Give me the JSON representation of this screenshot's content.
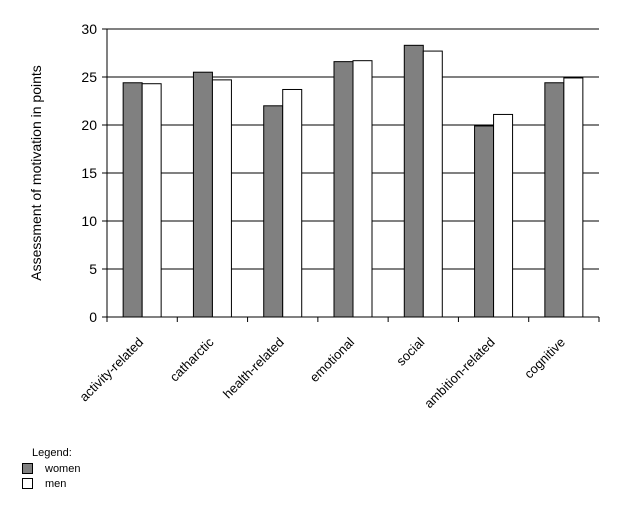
{
  "chart_data": {
    "type": "bar",
    "title": "",
    "xlabel": "",
    "ylabel": "Assessment of motivation in points",
    "ylim": [
      0,
      30
    ],
    "yticks": [
      0,
      5,
      10,
      15,
      20,
      25,
      30
    ],
    "grid": true,
    "legend_position": "bottom-left",
    "categories": [
      "activity-related",
      "catharctic",
      "health-related",
      "emotional",
      "social",
      "ambition-related",
      "cognitive"
    ],
    "series": [
      {
        "name": "women",
        "color": "#808080",
        "values": [
          24.4,
          25.5,
          22.0,
          26.6,
          28.3,
          19.9,
          24.4
        ]
      },
      {
        "name": "men",
        "color": "#ffffff",
        "values": [
          24.3,
          24.7,
          23.7,
          26.7,
          27.7,
          21.1,
          24.9
        ]
      }
    ]
  },
  "legend": {
    "title": "Legend:"
  }
}
